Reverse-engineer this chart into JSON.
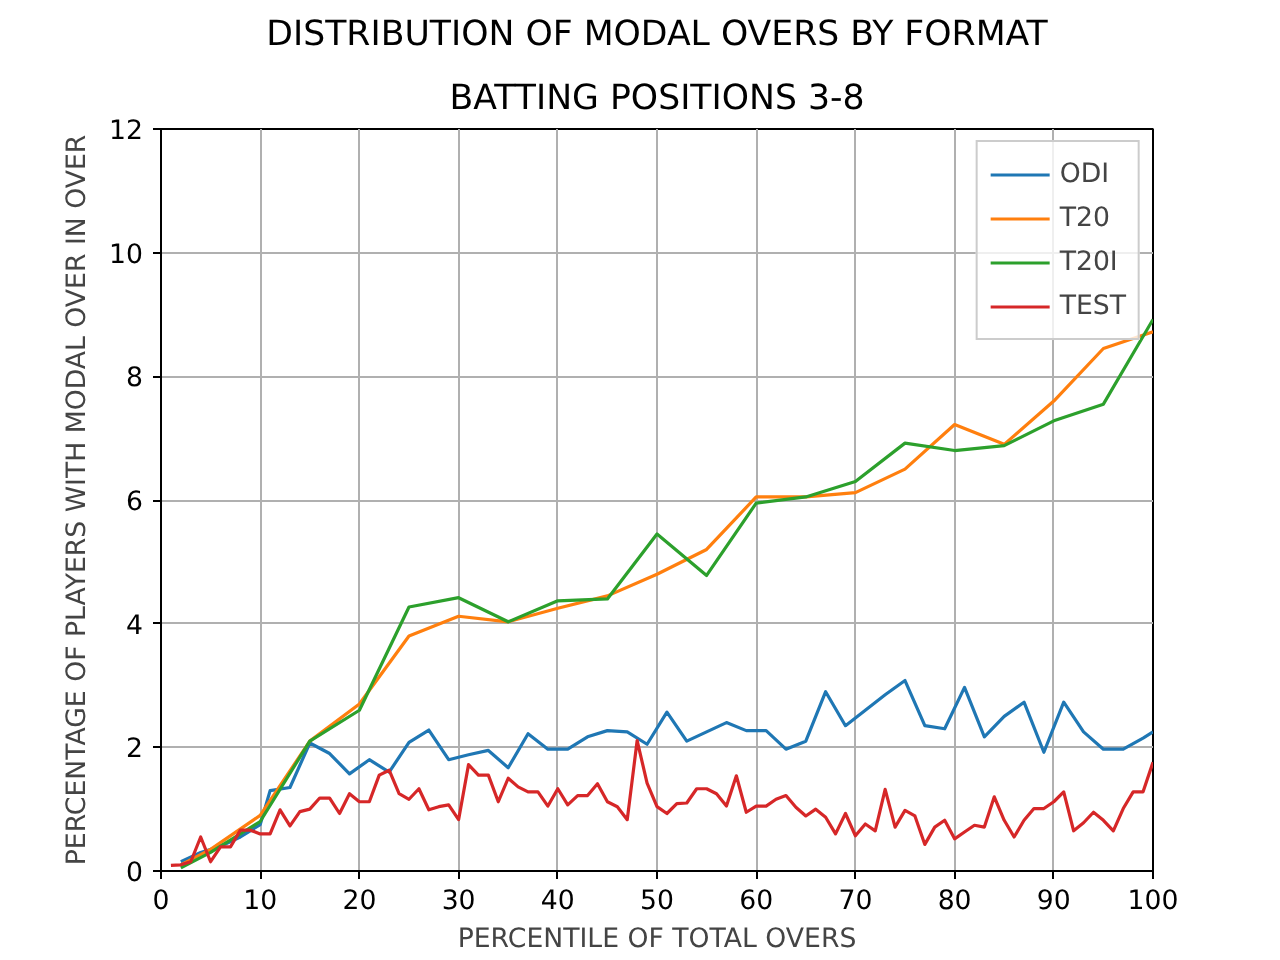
{
  "chart_data": {
    "type": "line",
    "title": "DISTRIBUTION OF MODAL OVERS BY FORMAT",
    "subtitle": "BATTING POSITIONS 3-8",
    "xlabel": "PERCENTILE OF TOTAL OVERS",
    "ylabel": "PERCENTAGE OF PLAYERS WITH MODAL OVER IN OVER",
    "xlim": [
      0,
      100
    ],
    "ylim": [
      0,
      12
    ],
    "xticks": [
      0,
      10,
      20,
      30,
      40,
      50,
      60,
      70,
      80,
      90,
      100
    ],
    "yticks": [
      0,
      2,
      4,
      6,
      8,
      10,
      12
    ],
    "grid": true,
    "legend": "top right",
    "line_style": "solid",
    "marker": "none",
    "series": [
      {
        "name": "ODI",
        "color": "#1f77b4",
        "x": [
          2,
          4,
          6,
          8,
          10,
          11,
          13,
          15,
          17,
          19,
          21,
          23,
          25,
          27,
          29,
          31,
          33,
          35,
          37,
          39,
          41,
          43,
          45,
          47,
          49,
          51,
          53,
          55,
          57,
          59,
          61,
          63,
          65,
          67,
          69,
          71,
          73,
          75,
          77,
          79,
          81,
          83,
          85,
          87,
          89,
          91,
          93,
          95,
          97,
          99,
          100
        ],
        "values": [
          0.15,
          0.3,
          0.4,
          0.55,
          0.75,
          1.3,
          1.35,
          2.07,
          1.9,
          1.57,
          1.8,
          1.6,
          2.08,
          2.28,
          1.8,
          1.88,
          1.95,
          1.67,
          2.22,
          1.97,
          1.97,
          2.17,
          2.27,
          2.25,
          2.05,
          2.57,
          2.1,
          2.25,
          2.4,
          2.27,
          2.27,
          1.97,
          2.1,
          2.9,
          2.35,
          2.6,
          2.85,
          3.08,
          2.35,
          2.3,
          2.97,
          2.17,
          2.5,
          2.73,
          1.92,
          2.73,
          2.25,
          1.97,
          1.97,
          2.15,
          2.25
        ]
      },
      {
        "name": "T20",
        "color": "#ff7f0e",
        "x": [
          2,
          5,
          10,
          15,
          20,
          25,
          30,
          35,
          40,
          45,
          50,
          55,
          60,
          65,
          70,
          75,
          80,
          85,
          90,
          95,
          100
        ],
        "values": [
          0.1,
          0.35,
          0.9,
          2.1,
          2.7,
          3.8,
          4.12,
          4.03,
          4.25,
          4.45,
          4.8,
          5.2,
          6.05,
          6.05,
          6.12,
          6.5,
          7.22,
          6.9,
          7.6,
          8.45,
          8.72
        ]
      },
      {
        "name": "T20I",
        "color": "#2ca02c",
        "x": [
          2,
          5,
          10,
          15,
          20,
          25,
          30,
          35,
          40,
          45,
          50,
          55,
          60,
          65,
          70,
          75,
          80,
          85,
          90,
          95,
          100
        ],
        "values": [
          0.05,
          0.3,
          0.8,
          2.1,
          2.6,
          4.27,
          4.42,
          4.03,
          4.37,
          4.4,
          5.45,
          4.78,
          5.95,
          6.05,
          6.3,
          6.92,
          6.8,
          6.88,
          7.28,
          7.55,
          8.92
        ]
      },
      {
        "name": "TEST",
        "color": "#d62728",
        "x": [
          1,
          2,
          3,
          4,
          5,
          6,
          7,
          8,
          9,
          10,
          11,
          12,
          13,
          14,
          15,
          16,
          17,
          18,
          19,
          20,
          21,
          22,
          23,
          24,
          25,
          26,
          27,
          28,
          29,
          30,
          31,
          32,
          33,
          34,
          35,
          36,
          37,
          38,
          39,
          40,
          41,
          42,
          43,
          44,
          45,
          46,
          47,
          48,
          49,
          50,
          51,
          52,
          53,
          54,
          55,
          56,
          57,
          58,
          59,
          60,
          61,
          62,
          63,
          64,
          65,
          66,
          67,
          68,
          69,
          70,
          71,
          72,
          73,
          74,
          75,
          76,
          77,
          78,
          79,
          80,
          81,
          82,
          83,
          84,
          85,
          86,
          87,
          88,
          89,
          90,
          91,
          92,
          93,
          94,
          95,
          96,
          97,
          98,
          99,
          100
        ],
        "values": [
          0.09,
          0.1,
          0.15,
          0.55,
          0.15,
          0.39,
          0.39,
          0.66,
          0.66,
          0.6,
          0.6,
          0.99,
          0.73,
          0.96,
          1.0,
          1.18,
          1.18,
          0.93,
          1.25,
          1.12,
          1.12,
          1.55,
          1.63,
          1.25,
          1.16,
          1.33,
          0.99,
          1.04,
          1.07,
          0.83,
          1.72,
          1.55,
          1.55,
          1.12,
          1.5,
          1.36,
          1.28,
          1.28,
          1.05,
          1.33,
          1.07,
          1.22,
          1.22,
          1.41,
          1.12,
          1.04,
          0.83,
          2.11,
          1.42,
          1.04,
          0.93,
          1.09,
          1.1,
          1.33,
          1.33,
          1.25,
          1.05,
          1.54,
          0.95,
          1.05,
          1.05,
          1.16,
          1.22,
          1.03,
          0.89,
          1.0,
          0.87,
          0.6,
          0.93,
          0.57,
          0.76,
          0.65,
          1.32,
          0.71,
          0.98,
          0.89,
          0.43,
          0.71,
          0.82,
          0.52,
          0.63,
          0.74,
          0.71,
          1.2,
          0.82,
          0.55,
          0.82,
          1.01,
          1.01,
          1.12,
          1.28,
          0.65,
          0.78,
          0.95,
          0.82,
          0.65,
          1.01,
          1.28,
          1.28,
          1.76
        ]
      }
    ]
  }
}
